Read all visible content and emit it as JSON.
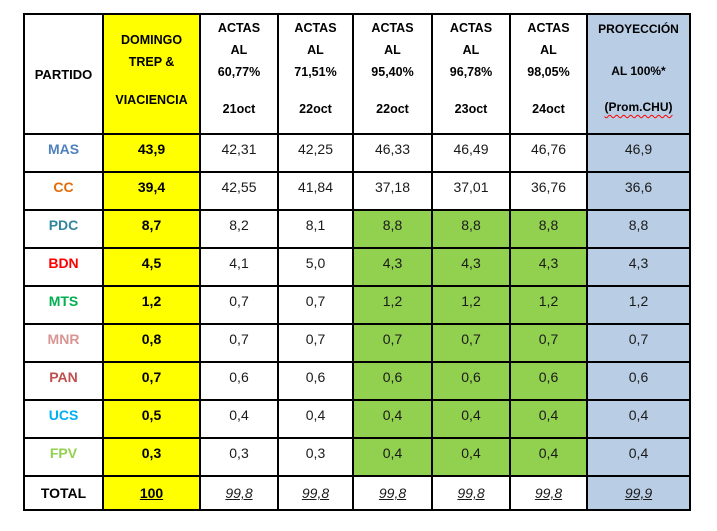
{
  "colors": {
    "yellow_bg": "#FFFF00",
    "green_bg": "#92D050",
    "blue_bg": "#B9CDE5",
    "border": "#000000",
    "spellcheck_squiggle": "#FF0000",
    "party_colors": {
      "MAS": "#4F81BD",
      "CC": "#E36C0A",
      "PDC": "#31859C",
      "BDN": "#FF0000",
      "MTS": "#00B050",
      "MNR": "#D99694",
      "PAN": "#C0504D",
      "UCS": "#00B0F0",
      "FPV": "#92D050"
    }
  },
  "chart_data": {
    "type": "table",
    "header": {
      "partido": "PARTIDO",
      "domingo": [
        "DOMINGO",
        "TREP &",
        "VIACIENCIA"
      ],
      "actas": [
        {
          "label": "ACTAS",
          "al": "AL",
          "pct": "60,77%",
          "date": "21oct"
        },
        {
          "label": "ACTAS",
          "al": "AL",
          "pct": "71,51%",
          "date": "22oct"
        },
        {
          "label": "ACTAS",
          "al": "AL",
          "pct": "95,40%",
          "date": "22oct"
        },
        {
          "label": "ACTAS",
          "al": "AL",
          "pct": "96,78%",
          "date": "23oct"
        },
        {
          "label": "ACTAS",
          "al": "AL",
          "pct": "98,05%",
          "date": "24oct"
        }
      ],
      "proyeccion": [
        "PROYECCIÓN",
        "AL 100%*",
        "(Prom.CHU)"
      ]
    },
    "rows": [
      {
        "party": "MAS",
        "color": "#4F81BD",
        "domingo": "43,9",
        "values": [
          "42,31",
          "42,25",
          "46,33",
          "46,49",
          "46,76"
        ],
        "highlight": [
          false,
          false,
          false,
          false,
          false
        ],
        "proyeccion": "46,9"
      },
      {
        "party": "CC",
        "color": "#E36C0A",
        "domingo": "39,4",
        "values": [
          "42,55",
          "41,84",
          "37,18",
          "37,01",
          "36,76"
        ],
        "highlight": [
          false,
          false,
          false,
          false,
          false
        ],
        "proyeccion": "36,6"
      },
      {
        "party": "PDC",
        "color": "#31859C",
        "domingo": "8,7",
        "values": [
          "8,2",
          "8,1",
          "8,8",
          "8,8",
          "8,8"
        ],
        "highlight": [
          false,
          false,
          true,
          true,
          true
        ],
        "proyeccion": "8,8"
      },
      {
        "party": "BDN",
        "color": "#FF0000",
        "domingo": "4,5",
        "values": [
          "4,1",
          "5,0",
          "4,3",
          "4,3",
          "4,3"
        ],
        "highlight": [
          false,
          false,
          true,
          true,
          true
        ],
        "proyeccion": "4,3"
      },
      {
        "party": "MTS",
        "color": "#00B050",
        "domingo": "1,2",
        "values": [
          "0,7",
          "0,7",
          "1,2",
          "1,2",
          "1,2"
        ],
        "highlight": [
          false,
          false,
          true,
          true,
          true
        ],
        "proyeccion": "1,2"
      },
      {
        "party": "MNR",
        "color": "#D99694",
        "domingo": "0,8",
        "values": [
          "0,7",
          "0,7",
          "0,7",
          "0,7",
          "0,7"
        ],
        "highlight": [
          false,
          false,
          true,
          true,
          true
        ],
        "proyeccion": "0,7"
      },
      {
        "party": "PAN",
        "color": "#C0504D",
        "domingo": "0,7",
        "values": [
          "0,6",
          "0,6",
          "0,6",
          "0,6",
          "0,6"
        ],
        "highlight": [
          false,
          false,
          true,
          true,
          true
        ],
        "proyeccion": "0,6"
      },
      {
        "party": "UCS",
        "color": "#00B0F0",
        "domingo": "0,5",
        "values": [
          "0,4",
          "0,4",
          "0,4",
          "0,4",
          "0,4"
        ],
        "highlight": [
          false,
          false,
          true,
          true,
          true
        ],
        "proyeccion": "0,4"
      },
      {
        "party": "FPV",
        "color": "#92D050",
        "domingo": "0,3",
        "values": [
          "0,3",
          "0,3",
          "0,4",
          "0,4",
          "0,4"
        ],
        "highlight": [
          false,
          false,
          true,
          true,
          true
        ],
        "proyeccion": "0,4"
      }
    ],
    "total": {
      "label": "TOTAL",
      "domingo": "100",
      "values": [
        "99,8",
        "99,8",
        "99,8",
        "99,8",
        "99,8"
      ],
      "proyeccion": "99,9"
    }
  }
}
